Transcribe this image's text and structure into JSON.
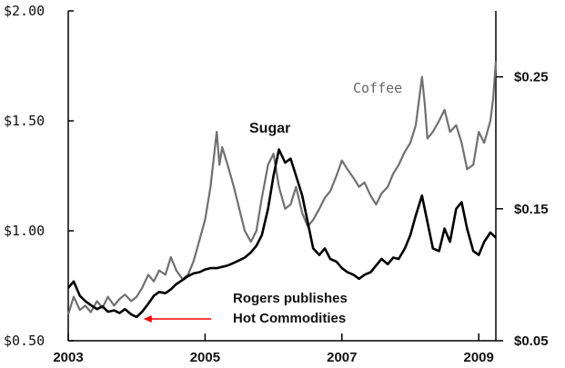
{
  "chart_data": {
    "type": "line",
    "title": "",
    "xlabel": "",
    "ylabel": "",
    "xlim": [
      2003,
      2009.25
    ],
    "ylim": [
      0.5,
      2.0
    ],
    "y2lim": [
      0.05,
      0.3
    ],
    "x_ticks": [
      "2003",
      "2005",
      "2007",
      "2009"
    ],
    "y_ticks_left": [
      "$2.00",
      "$1.50",
      "$1.00",
      "$0.50"
    ],
    "y_ticks_right": [
      "$0.25",
      "$0.15",
      "$0.05"
    ],
    "grid": false,
    "legend": "none",
    "series": [
      {
        "name": "Coffee",
        "axis": "left",
        "color": "#707070",
        "points": [
          [
            2003.0,
            0.62
          ],
          [
            2003.08,
            0.7
          ],
          [
            2003.17,
            0.64
          ],
          [
            2003.25,
            0.66
          ],
          [
            2003.33,
            0.63
          ],
          [
            2003.42,
            0.68
          ],
          [
            2003.5,
            0.65
          ],
          [
            2003.58,
            0.7
          ],
          [
            2003.67,
            0.66
          ],
          [
            2003.75,
            0.69
          ],
          [
            2003.83,
            0.71
          ],
          [
            2003.92,
            0.68
          ],
          [
            2004.0,
            0.7
          ],
          [
            2004.08,
            0.74
          ],
          [
            2004.17,
            0.8
          ],
          [
            2004.25,
            0.77
          ],
          [
            2004.33,
            0.82
          ],
          [
            2004.42,
            0.8
          ],
          [
            2004.5,
            0.88
          ],
          [
            2004.58,
            0.82
          ],
          [
            2004.67,
            0.78
          ],
          [
            2004.75,
            0.8
          ],
          [
            2004.83,
            0.86
          ],
          [
            2004.92,
            0.96
          ],
          [
            2005.0,
            1.05
          ],
          [
            2005.08,
            1.2
          ],
          [
            2005.17,
            1.45
          ],
          [
            2005.21,
            1.3
          ],
          [
            2005.25,
            1.38
          ],
          [
            2005.33,
            1.3
          ],
          [
            2005.42,
            1.2
          ],
          [
            2005.5,
            1.1
          ],
          [
            2005.58,
            1.0
          ],
          [
            2005.67,
            0.95
          ],
          [
            2005.75,
            1.0
          ],
          [
            2005.83,
            1.15
          ],
          [
            2005.92,
            1.3
          ],
          [
            2006.0,
            1.35
          ],
          [
            2006.08,
            1.2
          ],
          [
            2006.17,
            1.1
          ],
          [
            2006.25,
            1.12
          ],
          [
            2006.33,
            1.2
          ],
          [
            2006.42,
            1.08
          ],
          [
            2006.5,
            1.02
          ],
          [
            2006.58,
            1.05
          ],
          [
            2006.67,
            1.1
          ],
          [
            2006.75,
            1.15
          ],
          [
            2006.83,
            1.18
          ],
          [
            2006.92,
            1.25
          ],
          [
            2007.0,
            1.32
          ],
          [
            2007.08,
            1.28
          ],
          [
            2007.17,
            1.24
          ],
          [
            2007.25,
            1.2
          ],
          [
            2007.33,
            1.22
          ],
          [
            2007.42,
            1.16
          ],
          [
            2007.5,
            1.12
          ],
          [
            2007.58,
            1.17
          ],
          [
            2007.67,
            1.2
          ],
          [
            2007.75,
            1.26
          ],
          [
            2007.83,
            1.3
          ],
          [
            2007.92,
            1.36
          ],
          [
            2008.0,
            1.4
          ],
          [
            2008.08,
            1.48
          ],
          [
            2008.17,
            1.7
          ],
          [
            2008.21,
            1.58
          ],
          [
            2008.25,
            1.42
          ],
          [
            2008.33,
            1.45
          ],
          [
            2008.42,
            1.5
          ],
          [
            2008.5,
            1.55
          ],
          [
            2008.58,
            1.45
          ],
          [
            2008.67,
            1.48
          ],
          [
            2008.75,
            1.4
          ],
          [
            2008.83,
            1.28
          ],
          [
            2008.92,
            1.3
          ],
          [
            2009.0,
            1.45
          ],
          [
            2009.08,
            1.4
          ],
          [
            2009.17,
            1.5
          ],
          [
            2009.21,
            1.6
          ],
          [
            2009.25,
            1.77
          ]
        ]
      },
      {
        "name": "Sugar",
        "axis": "right",
        "color": "#000000",
        "points": [
          [
            2003.0,
            0.09
          ],
          [
            2003.08,
            0.095
          ],
          [
            2003.17,
            0.084
          ],
          [
            2003.25,
            0.08
          ],
          [
            2003.33,
            0.077
          ],
          [
            2003.42,
            0.074
          ],
          [
            2003.5,
            0.076
          ],
          [
            2003.58,
            0.072
          ],
          [
            2003.67,
            0.073
          ],
          [
            2003.75,
            0.071
          ],
          [
            2003.83,
            0.074
          ],
          [
            2003.92,
            0.07
          ],
          [
            2004.0,
            0.068
          ],
          [
            2004.08,
            0.072
          ],
          [
            2004.17,
            0.078
          ],
          [
            2004.25,
            0.084
          ],
          [
            2004.33,
            0.087
          ],
          [
            2004.42,
            0.086
          ],
          [
            2004.5,
            0.089
          ],
          [
            2004.58,
            0.093
          ],
          [
            2004.67,
            0.096
          ],
          [
            2004.75,
            0.099
          ],
          [
            2004.83,
            0.101
          ],
          [
            2004.92,
            0.102
          ],
          [
            2005.0,
            0.104
          ],
          [
            2005.08,
            0.105
          ],
          [
            2005.17,
            0.105
          ],
          [
            2005.25,
            0.106
          ],
          [
            2005.33,
            0.107
          ],
          [
            2005.42,
            0.109
          ],
          [
            2005.5,
            0.111
          ],
          [
            2005.58,
            0.113
          ],
          [
            2005.67,
            0.117
          ],
          [
            2005.75,
            0.122
          ],
          [
            2005.83,
            0.13
          ],
          [
            2005.92,
            0.15
          ],
          [
            2006.0,
            0.175
          ],
          [
            2006.08,
            0.195
          ],
          [
            2006.17,
            0.185
          ],
          [
            2006.25,
            0.188
          ],
          [
            2006.33,
            0.175
          ],
          [
            2006.42,
            0.16
          ],
          [
            2006.5,
            0.14
          ],
          [
            2006.58,
            0.12
          ],
          [
            2006.67,
            0.115
          ],
          [
            2006.75,
            0.12
          ],
          [
            2006.83,
            0.112
          ],
          [
            2006.92,
            0.11
          ],
          [
            2007.0,
            0.105
          ],
          [
            2007.08,
            0.102
          ],
          [
            2007.17,
            0.1
          ],
          [
            2007.25,
            0.097
          ],
          [
            2007.33,
            0.1
          ],
          [
            2007.42,
            0.102
          ],
          [
            2007.5,
            0.107
          ],
          [
            2007.58,
            0.112
          ],
          [
            2007.67,
            0.108
          ],
          [
            2007.75,
            0.113
          ],
          [
            2007.83,
            0.112
          ],
          [
            2007.92,
            0.12
          ],
          [
            2008.0,
            0.13
          ],
          [
            2008.08,
            0.145
          ],
          [
            2008.17,
            0.16
          ],
          [
            2008.25,
            0.14
          ],
          [
            2008.33,
            0.12
          ],
          [
            2008.42,
            0.118
          ],
          [
            2008.5,
            0.135
          ],
          [
            2008.58,
            0.125
          ],
          [
            2008.67,
            0.15
          ],
          [
            2008.75,
            0.155
          ],
          [
            2008.83,
            0.135
          ],
          [
            2008.92,
            0.118
          ],
          [
            2009.0,
            0.115
          ],
          [
            2009.08,
            0.125
          ],
          [
            2009.17,
            0.132
          ],
          [
            2009.25,
            0.128
          ]
        ]
      }
    ],
    "annotations": {
      "sugar_label": "Sugar",
      "coffee_label": "Coffee",
      "note_line1": "Rogers publishes",
      "note_line2": "Hot Commodities",
      "note_year": 2004.1,
      "arrow_color": "#ff0000"
    }
  }
}
